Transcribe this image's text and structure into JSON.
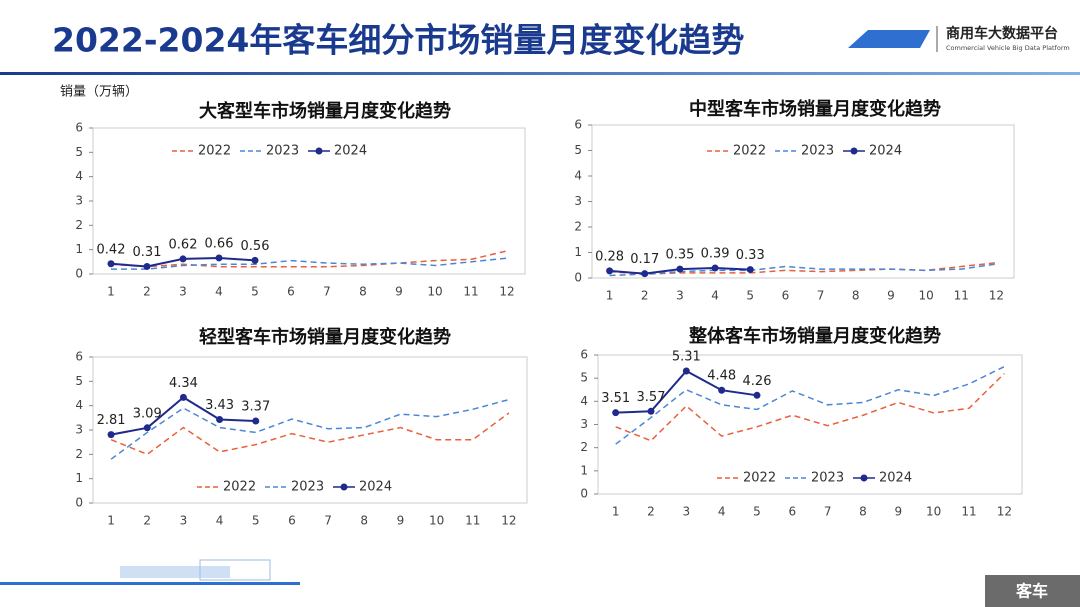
{
  "header": {
    "title": "2022-2024年客车细分市场销量月度变化趋势",
    "brand": "商用车大数据平台",
    "brand_en": "Commercial Vehicle Big Data Platform"
  },
  "footer": {
    "label": "客车"
  },
  "chart_data": [
    {
      "type": "line",
      "title": "大客型车市场销量月度变化趋势",
      "y_label": "销量（万辆）",
      "categories": [
        "1",
        "2",
        "3",
        "4",
        "5",
        "6",
        "7",
        "8",
        "9",
        "10",
        "11",
        "12"
      ],
      "ylim": [
        0,
        6
      ],
      "yticks": [
        0,
        1,
        2,
        3,
        4,
        5,
        6
      ],
      "series": [
        {
          "name": "2022",
          "color": "#e8603c",
          "style": "dashed",
          "values": [
            0.4,
            0.3,
            0.4,
            0.3,
            0.3,
            0.3,
            0.3,
            0.35,
            0.45,
            0.55,
            0.6,
            0.95
          ]
        },
        {
          "name": "2023",
          "color": "#4a86d8",
          "style": "dashed",
          "values": [
            0.2,
            0.2,
            0.35,
            0.4,
            0.4,
            0.55,
            0.45,
            0.4,
            0.45,
            0.35,
            0.5,
            0.65
          ]
        },
        {
          "name": "2024",
          "color": "#1f2a8c",
          "style": "solid",
          "show_values": true,
          "values": [
            0.42,
            0.31,
            0.62,
            0.66,
            0.56,
            null,
            null,
            null,
            null,
            null,
            null,
            null
          ]
        }
      ]
    },
    {
      "type": "line",
      "title": "中型客车市场销量月度变化趋势",
      "categories": [
        "1",
        "2",
        "3",
        "4",
        "5",
        "6",
        "7",
        "8",
        "9",
        "10",
        "11",
        "12"
      ],
      "ylim": [
        0,
        6
      ],
      "yticks": [
        0,
        1,
        2,
        3,
        4,
        5,
        6
      ],
      "series": [
        {
          "name": "2022",
          "color": "#e8603c",
          "style": "dashed",
          "values": [
            0.25,
            0.15,
            0.2,
            0.2,
            0.2,
            0.3,
            0.25,
            0.3,
            0.35,
            0.3,
            0.45,
            0.6
          ]
        },
        {
          "name": "2023",
          "color": "#4a86d8",
          "style": "dashed",
          "values": [
            0.1,
            0.15,
            0.25,
            0.3,
            0.3,
            0.45,
            0.35,
            0.35,
            0.35,
            0.3,
            0.35,
            0.55
          ]
        },
        {
          "name": "2024",
          "color": "#1f2a8c",
          "style": "solid",
          "show_values": true,
          "values": [
            0.28,
            0.17,
            0.35,
            0.39,
            0.33,
            null,
            null,
            null,
            null,
            null,
            null,
            null
          ]
        }
      ]
    },
    {
      "type": "line",
      "title": "轻型客车市场销量月度变化趋势",
      "categories": [
        "1",
        "2",
        "3",
        "4",
        "5",
        "6",
        "7",
        "8",
        "9",
        "10",
        "11",
        "12"
      ],
      "ylim": [
        0,
        6
      ],
      "yticks": [
        0,
        1,
        2,
        3,
        4,
        5,
        6
      ],
      "series": [
        {
          "name": "2022",
          "color": "#e8603c",
          "style": "dashed",
          "values": [
            2.6,
            2.0,
            3.1,
            2.1,
            2.4,
            2.85,
            2.5,
            2.8,
            3.1,
            2.6,
            2.6,
            3.7
          ]
        },
        {
          "name": "2023",
          "color": "#4a86d8",
          "style": "dashed",
          "values": [
            1.8,
            2.9,
            3.9,
            3.1,
            2.9,
            3.45,
            3.05,
            3.1,
            3.65,
            3.55,
            3.85,
            4.25
          ]
        },
        {
          "name": "2024",
          "color": "#1f2a8c",
          "style": "solid",
          "show_values": true,
          "values": [
            2.81,
            3.09,
            4.34,
            3.43,
            3.37,
            null,
            null,
            null,
            null,
            null,
            null,
            null
          ]
        }
      ]
    },
    {
      "type": "line",
      "title": "整体客车市场销量月度变化趋势",
      "categories": [
        "1",
        "2",
        "3",
        "4",
        "5",
        "6",
        "7",
        "8",
        "9",
        "10",
        "11",
        "12"
      ],
      "ylim": [
        0,
        6
      ],
      "yticks": [
        0,
        1,
        2,
        3,
        4,
        5,
        6
      ],
      "series": [
        {
          "name": "2022",
          "color": "#e8603c",
          "style": "dashed",
          "values": [
            2.9,
            2.3,
            3.8,
            2.5,
            2.9,
            3.4,
            2.95,
            3.4,
            3.95,
            3.5,
            3.7,
            5.2
          ]
        },
        {
          "name": "2023",
          "color": "#4a86d8",
          "style": "dashed",
          "values": [
            2.15,
            3.3,
            4.5,
            3.85,
            3.65,
            4.45,
            3.85,
            3.95,
            4.5,
            4.25,
            4.75,
            5.5
          ]
        },
        {
          "name": "2024",
          "color": "#1f2a8c",
          "style": "solid",
          "show_values": true,
          "values": [
            3.51,
            3.57,
            5.31,
            4.48,
            4.26,
            null,
            null,
            null,
            null,
            null,
            null,
            null
          ]
        }
      ]
    }
  ]
}
